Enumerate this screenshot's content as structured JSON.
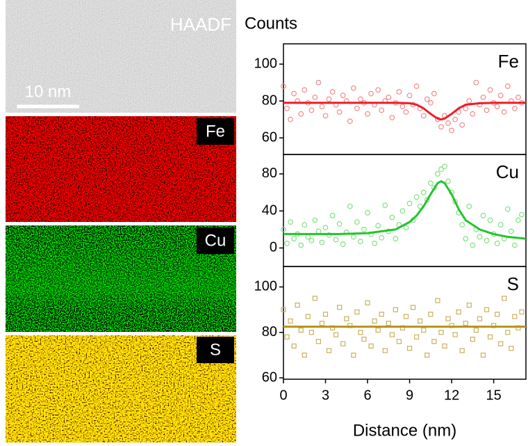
{
  "images": [
    {
      "label": "HAADF",
      "scale_bar": "10 nm"
    },
    {
      "label": "Fe"
    },
    {
      "label": "Cu"
    },
    {
      "label": "S"
    }
  ],
  "chart_data": [
    {
      "type": "scatter",
      "y_label": "Counts",
      "label": "Fe",
      "marker": "circle",
      "xlim": [
        0,
        17.3
      ],
      "ylim": [
        51,
        111
      ],
      "yticks": [
        60,
        80,
        100
      ],
      "series": [
        {
          "color": "#f08a8a",
          "x": [
            0,
            0.25,
            0.5,
            0.75,
            1,
            1.25,
            1.5,
            1.75,
            2,
            2.25,
            2.5,
            2.75,
            3,
            3.25,
            3.5,
            3.75,
            4,
            4.25,
            4.5,
            4.75,
            5,
            5.25,
            5.5,
            5.75,
            6,
            6.25,
            6.5,
            6.75,
            7,
            7.25,
            7.5,
            7.75,
            8,
            8.25,
            8.5,
            8.75,
            9,
            9.25,
            9.5,
            9.75,
            10,
            10.25,
            10.5,
            10.75,
            11,
            11.25,
            11.5,
            11.75,
            12,
            12.25,
            12.5,
            12.75,
            13,
            13.25,
            13.5,
            13.75,
            14,
            14.25,
            14.5,
            14.75,
            15,
            15.25,
            15.5,
            15.75,
            16,
            16.25,
            16.5,
            16.75,
            17
          ],
          "values": [
            88,
            76,
            70,
            84,
            80,
            73,
            86,
            79,
            75,
            82,
            90,
            77,
            72,
            81,
            85,
            78,
            74,
            83,
            80,
            69,
            87,
            76,
            81,
            79,
            73,
            84,
            78,
            86,
            75,
            80,
            82,
            71,
            79,
            85,
            77,
            74,
            83,
            78,
            88,
            76,
            72,
            81,
            79,
            84,
            70,
            66,
            72,
            68,
            64,
            70,
            74,
            67,
            76,
            80,
            73,
            90,
            78,
            82,
            75,
            86,
            79,
            77,
            83,
            74,
            88,
            80,
            76,
            82,
            79
          ]
        },
        {
          "color": "#ee1c25",
          "fit": true,
          "x": [
            0,
            2,
            4,
            6,
            8,
            9,
            9.5,
            10,
            10.5,
            11,
            11.25,
            11.5,
            12,
            12.5,
            13,
            14,
            15,
            16,
            17.3
          ],
          "values": [
            79,
            79,
            79,
            79,
            79,
            78.8,
            78,
            76,
            73,
            70.5,
            70,
            70.5,
            73,
            76,
            78,
            78.8,
            79,
            79,
            79
          ]
        }
      ]
    },
    {
      "type": "scatter",
      "label": "Cu",
      "marker": "circle",
      "xlim": [
        0,
        17.3
      ],
      "ylim": [
        -20,
        101
      ],
      "yticks": [
        0,
        40,
        80
      ],
      "series": [
        {
          "color": "#80e080",
          "x": [
            0,
            0.25,
            0.5,
            0.75,
            1,
            1.25,
            1.5,
            1.75,
            2,
            2.25,
            2.5,
            2.75,
            3,
            3.25,
            3.5,
            3.75,
            4,
            4.25,
            4.5,
            4.75,
            5,
            5.25,
            5.5,
            5.75,
            6,
            6.25,
            6.5,
            6.75,
            7,
            7.25,
            7.5,
            7.75,
            8,
            8.25,
            8.5,
            8.75,
            9,
            9.25,
            9.5,
            9.75,
            10,
            10.25,
            10.5,
            10.75,
            11,
            11.25,
            11.5,
            11.75,
            12,
            12.25,
            12.5,
            12.75,
            13,
            13.25,
            13.5,
            13.75,
            14,
            14.25,
            14.5,
            14.75,
            15,
            15.25,
            15.5,
            15.75,
            16,
            16.25,
            16.5,
            16.75,
            17
          ],
          "values": [
            20,
            5,
            28,
            10,
            15,
            3,
            25,
            12,
            8,
            30,
            18,
            6,
            22,
            14,
            35,
            9,
            26,
            4,
            17,
            45,
            12,
            28,
            7,
            20,
            38,
            15,
            5,
            24,
            11,
            46,
            18,
            33,
            10,
            25,
            40,
            22,
            48,
            30,
            55,
            45,
            60,
            52,
            70,
            65,
            80,
            85,
            88,
            72,
            60,
            50,
            38,
            25,
            10,
            45,
            3,
            20,
            12,
            35,
            8,
            30,
            15,
            5,
            25,
            10,
            42,
            18,
            3,
            30,
            36
          ]
        },
        {
          "color": "#22c42e",
          "fit": true,
          "x": [
            0,
            2,
            4,
            6,
            8,
            9,
            9.5,
            10,
            10.5,
            11,
            11.25,
            11.5,
            12,
            12.5,
            13,
            14,
            15,
            16,
            17.3
          ],
          "values": [
            15,
            15,
            15,
            16,
            20,
            28,
            35,
            45,
            58,
            70,
            72,
            70,
            58,
            42,
            30,
            20,
            15,
            12,
            10
          ]
        }
      ]
    },
    {
      "type": "scatter",
      "label": "S",
      "marker": "square",
      "x_label": "Distance (nm)",
      "xlim": [
        0,
        17.3
      ],
      "ylim": [
        59.4,
        109
      ],
      "yticks": [
        60,
        80,
        100
      ],
      "xticks": [
        0,
        3,
        6,
        9,
        12,
        15
      ],
      "series": [
        {
          "color": "#c8b060",
          "x": [
            0,
            0.25,
            0.5,
            0.75,
            1,
            1.25,
            1.5,
            1.75,
            2,
            2.25,
            2.5,
            2.75,
            3,
            3.25,
            3.5,
            3.75,
            4,
            4.25,
            4.5,
            4.75,
            5,
            5.25,
            5.5,
            5.75,
            6,
            6.25,
            6.5,
            6.75,
            7,
            7.25,
            7.5,
            7.75,
            8,
            8.25,
            8.5,
            8.75,
            9,
            9.25,
            9.5,
            9.75,
            10,
            10.25,
            10.5,
            10.75,
            11,
            11.25,
            11.5,
            11.75,
            12,
            12.25,
            12.5,
            12.75,
            13,
            13.25,
            13.5,
            13.75,
            14,
            14.25,
            14.5,
            14.75,
            15,
            15.25,
            15.5,
            15.75,
            16,
            16.25,
            16.5,
            16.75,
            17
          ],
          "values": [
            90,
            78,
            85,
            74,
            92,
            81,
            70,
            87,
            80,
            95,
            76,
            84,
            88,
            72,
            82,
            79,
            91,
            75,
            86,
            83,
            70,
            89,
            80,
            77,
            93,
            74,
            85,
            81,
            88,
            72,
            84,
            79,
            90,
            76,
            82,
            87,
            73,
            91,
            78,
            85,
            81,
            70,
            88,
            76,
            94,
            80,
            74,
            86,
            83,
            79,
            89,
            72,
            84,
            92,
            77,
            81,
            86,
            70,
            90,
            78,
            83,
            88,
            75,
            95,
            80,
            73,
            87,
            82,
            89
          ]
        },
        {
          "color": "#b8961e",
          "fit": true,
          "x": [
            0,
            17.3
          ],
          "values": [
            82.5,
            82.5
          ]
        }
      ]
    }
  ]
}
